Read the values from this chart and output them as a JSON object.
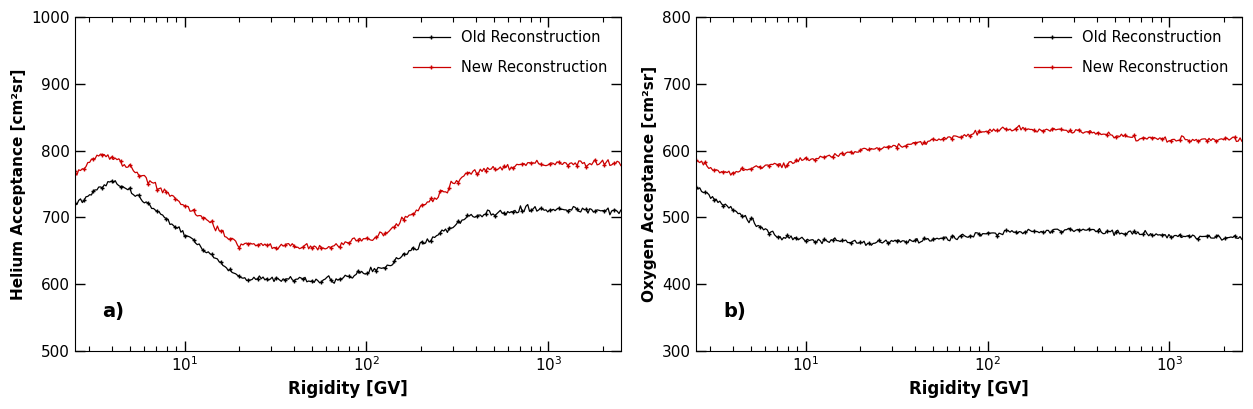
{
  "panel_a": {
    "label": "a)",
    "xlabel": "Rigidity [GV]",
    "ylabel": "Helium Acceptance [cm²sr]",
    "xlim": [
      2.5,
      2500
    ],
    "ylim": [
      500,
      1000
    ],
    "yticks": [
      500,
      600,
      700,
      800,
      900,
      1000
    ],
    "old_color": "#000000",
    "new_color": "#cc0000",
    "legend_labels": [
      "Old Reconstruction",
      "New Reconstruction"
    ]
  },
  "panel_b": {
    "label": "b)",
    "xlabel": "Rigidity [GV]",
    "ylabel": "Oxygen Acceptance [cm²sr]",
    "xlim": [
      2.5,
      2500
    ],
    "ylim": [
      300,
      800
    ],
    "yticks": [
      300,
      400,
      500,
      600,
      700,
      800
    ],
    "old_color": "#000000",
    "new_color": "#cc0000",
    "legend_labels": [
      "Old Reconstruction",
      "New Reconstruction"
    ]
  },
  "fig_width": 12.53,
  "fig_height": 4.09,
  "dpi": 100
}
